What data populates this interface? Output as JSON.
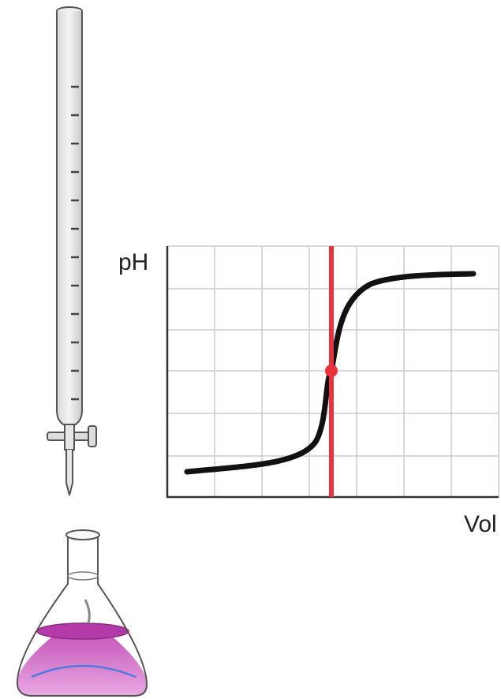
{
  "diagram": {
    "y_axis_label": "pH",
    "x_axis_label": "Vol"
  }
}
